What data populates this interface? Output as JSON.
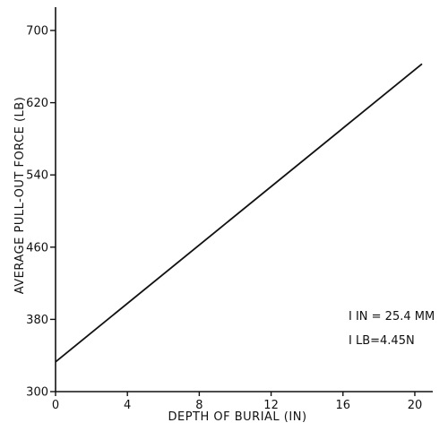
{
  "chart_data": {
    "type": "line",
    "title": "",
    "xlabel": "DEPTH OF BURIAL (IN)",
    "ylabel": "AVERAGE PULL-OUT FORCE (LB)",
    "xlim": [
      0,
      21
    ],
    "ylim": [
      300,
      730
    ],
    "x_ticks": [
      0,
      4,
      8,
      12,
      16,
      20
    ],
    "y_ticks": [
      300,
      380,
      460,
      540,
      620,
      700
    ],
    "x_tick_labels": [
      "0",
      "4",
      "8",
      "12",
      "16",
      "20"
    ],
    "y_tick_labels": [
      "300",
      "380",
      "460",
      "540",
      "620",
      "700"
    ],
    "grid": false,
    "series": [
      {
        "x": [
          0,
          20.4
        ],
        "y": [
          333,
          663
        ]
      }
    ],
    "annotations": [
      "I IN = 25.4 MM",
      "I LB=4.45N"
    ]
  }
}
